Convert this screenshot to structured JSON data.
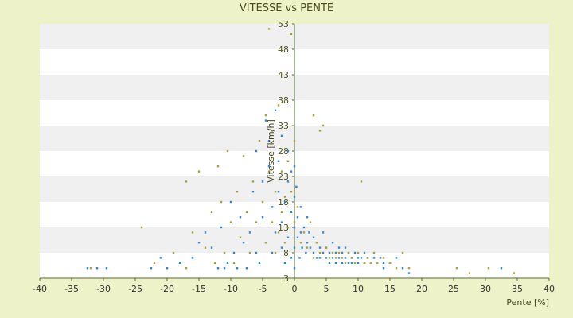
{
  "chart_data": {
    "type": "scatter",
    "title": "VITESSE vs PENTE",
    "xlabel": "Pente [%]",
    "ylabel": "Vitesse [km/h]",
    "xlim": [
      -40,
      40
    ],
    "ylim": [
      3,
      53
    ],
    "xticks": [
      "-40",
      "-35",
      "-30",
      "-25",
      "-20",
      "-15",
      "-10",
      "-5",
      "0",
      "5",
      "10",
      "15",
      "20",
      "25",
      "30",
      "35",
      "40"
    ],
    "yticks": [
      "3",
      "8",
      "13",
      "18",
      "23",
      "28",
      "33",
      "38",
      "43",
      "48",
      "53"
    ],
    "grid": "horizontal alternating bands",
    "legend": "none",
    "colors": {
      "background": "#eef2c9",
      "band_light": "#ffffff",
      "band_dark": "#f0f0f0",
      "series_blue": "#2e88d6",
      "series_olive": "#a9a236",
      "axis": "#556b2f"
    },
    "series": [
      {
        "color": "#2e88d6",
        "points": [
          [
            -32.5,
            5
          ],
          [
            -31,
            5
          ],
          [
            -29.5,
            5
          ],
          [
            -22.5,
            5
          ],
          [
            -21,
            7
          ],
          [
            -20,
            5
          ],
          [
            -18,
            6
          ],
          [
            -16,
            7
          ],
          [
            -15,
            10
          ],
          [
            -14,
            12
          ],
          [
            -13,
            9
          ],
          [
            -12,
            5
          ],
          [
            -11.5,
            13
          ],
          [
            -11,
            5
          ],
          [
            -10.5,
            6
          ],
          [
            -10,
            18
          ],
          [
            -9.5,
            8
          ],
          [
            -9,
            5
          ],
          [
            -8.5,
            15
          ],
          [
            -8,
            10
          ],
          [
            -7.5,
            5
          ],
          [
            -7,
            12
          ],
          [
            -6.5,
            20
          ],
          [
            -6,
            8
          ],
          [
            -6,
            28
          ],
          [
            -5.5,
            6
          ],
          [
            -5,
            15
          ],
          [
            -5,
            22
          ],
          [
            -4.5,
            34
          ],
          [
            -4.5,
            10
          ],
          [
            -4,
            25
          ],
          [
            -4,
            30
          ],
          [
            -3.5,
            17
          ],
          [
            -3.5,
            8
          ],
          [
            -3,
            36
          ],
          [
            -3,
            12
          ],
          [
            -2.5,
            20
          ],
          [
            -2.5,
            26
          ],
          [
            -2,
            9
          ],
          [
            -2,
            14
          ],
          [
            -2,
            31
          ],
          [
            -1.5,
            6
          ],
          [
            -1.5,
            18
          ],
          [
            -1,
            22
          ],
          [
            -1,
            11
          ],
          [
            -1,
            28
          ],
          [
            -0.5,
            7
          ],
          [
            -0.5,
            16
          ],
          [
            -0.5,
            24
          ],
          [
            0,
            5
          ],
          [
            0,
            9
          ],
          [
            0,
            13
          ],
          [
            0,
            19
          ],
          [
            0,
            25
          ],
          [
            0.3,
            21
          ],
          [
            0.5,
            11
          ],
          [
            0.5,
            15
          ],
          [
            0.8,
            7
          ],
          [
            1,
            12
          ],
          [
            1,
            17
          ],
          [
            1.2,
            9
          ],
          [
            1.5,
            13
          ],
          [
            1.8,
            8
          ],
          [
            2,
            10
          ],
          [
            2,
            15
          ],
          [
            2.3,
            12
          ],
          [
            2.5,
            9
          ],
          [
            3,
            11
          ],
          [
            3,
            8
          ],
          [
            3.5,
            7
          ],
          [
            3.5,
            10
          ],
          [
            4,
            9
          ],
          [
            4,
            7
          ],
          [
            4.5,
            8
          ],
          [
            4.5,
            12
          ],
          [
            5,
            7
          ],
          [
            5,
            9
          ],
          [
            5.5,
            6
          ],
          [
            5.5,
            8
          ],
          [
            6,
            7
          ],
          [
            6,
            10
          ],
          [
            6.5,
            6
          ],
          [
            6.5,
            8
          ],
          [
            7,
            7
          ],
          [
            7,
            9
          ],
          [
            7.5,
            6
          ],
          [
            7.5,
            8
          ],
          [
            8,
            7
          ],
          [
            8,
            9
          ],
          [
            8.5,
            6
          ],
          [
            8.5,
            8
          ],
          [
            9,
            7
          ],
          [
            9,
            6
          ],
          [
            9.5,
            8
          ],
          [
            10,
            7
          ],
          [
            10,
            6
          ],
          [
            10.5,
            7
          ],
          [
            11,
            6
          ],
          [
            11,
            8
          ],
          [
            11.5,
            7
          ],
          [
            12,
            6
          ],
          [
            12.5,
            7
          ],
          [
            13,
            6
          ],
          [
            13.5,
            7
          ],
          [
            14,
            6
          ],
          [
            14,
            5
          ],
          [
            15,
            6
          ],
          [
            16,
            7
          ],
          [
            17,
            5
          ],
          [
            18,
            4
          ],
          [
            32.5,
            5
          ]
        ]
      },
      {
        "color": "#a9a236",
        "points": [
          [
            -32,
            5
          ],
          [
            -24,
            13
          ],
          [
            -22,
            6
          ],
          [
            -19,
            8
          ],
          [
            -17,
            22
          ],
          [
            -17,
            5
          ],
          [
            -16,
            12
          ],
          [
            -15,
            24
          ],
          [
            -14,
            9
          ],
          [
            -13,
            16
          ],
          [
            -12.5,
            6
          ],
          [
            -12,
            25
          ],
          [
            -11.5,
            18
          ],
          [
            -11,
            8
          ],
          [
            -10.5,
            28
          ],
          [
            -10,
            14
          ],
          [
            -9.5,
            6
          ],
          [
            -9,
            20
          ],
          [
            -8.5,
            11
          ],
          [
            -8,
            27
          ],
          [
            -7.5,
            16
          ],
          [
            -7,
            8
          ],
          [
            -6.5,
            22
          ],
          [
            -6,
            14
          ],
          [
            -5.5,
            30
          ],
          [
            -5,
            18
          ],
          [
            -4.5,
            10
          ],
          [
            -4.5,
            35
          ],
          [
            -4,
            24
          ],
          [
            -4,
            52
          ],
          [
            -3.5,
            14
          ],
          [
            -3.5,
            32
          ],
          [
            -3,
            20
          ],
          [
            -3,
            8
          ],
          [
            -2.5,
            37
          ],
          [
            -2.5,
            12
          ],
          [
            -2,
            24
          ],
          [
            -2,
            16
          ],
          [
            -1.5,
            19
          ],
          [
            -1.5,
            10
          ],
          [
            -1,
            26
          ],
          [
            -1,
            13
          ],
          [
            -0.5,
            51
          ],
          [
            -0.5,
            20
          ],
          [
            0,
            30
          ],
          [
            0,
            14
          ],
          [
            0.5,
            17
          ],
          [
            1,
            10
          ],
          [
            1.5,
            12
          ],
          [
            2,
            9
          ],
          [
            2.5,
            14
          ],
          [
            3,
            35
          ],
          [
            3,
            7
          ],
          [
            3.5,
            10
          ],
          [
            4,
            32
          ],
          [
            4,
            8
          ],
          [
            4.5,
            33
          ],
          [
            5,
            9
          ],
          [
            5.5,
            7
          ],
          [
            6,
            8
          ],
          [
            6.5,
            7
          ],
          [
            7,
            8
          ],
          [
            7.5,
            7
          ],
          [
            8,
            6
          ],
          [
            8.5,
            8
          ],
          [
            9,
            7
          ],
          [
            9.5,
            6
          ],
          [
            10,
            8
          ],
          [
            10.5,
            22
          ],
          [
            11,
            6
          ],
          [
            11.5,
            7
          ],
          [
            12,
            6
          ],
          [
            12.5,
            8
          ],
          [
            13,
            6
          ],
          [
            14,
            7
          ],
          [
            15,
            6
          ],
          [
            16,
            5
          ],
          [
            17,
            8
          ],
          [
            18,
            5
          ],
          [
            25.5,
            5
          ],
          [
            27.5,
            4
          ],
          [
            30.5,
            5
          ],
          [
            34.5,
            4
          ]
        ]
      }
    ]
  }
}
